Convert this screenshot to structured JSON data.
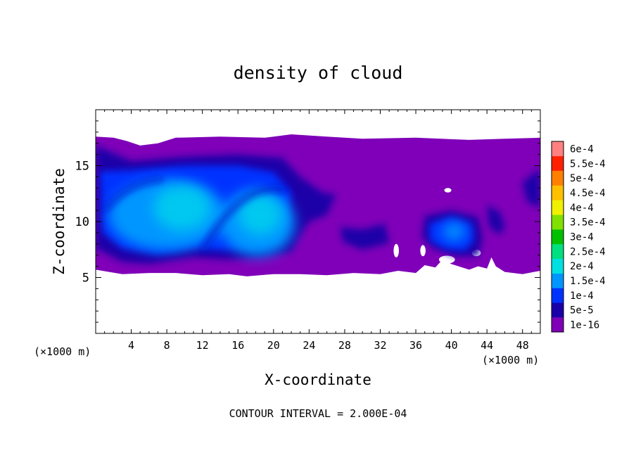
{
  "chart_data": {
    "type": "heatmap",
    "title": "density of cloud",
    "xlabel": "X-coordinate",
    "ylabel": "Z-coordinate",
    "x_unit_left": "(×1000 m)",
    "x_unit_right": "(×1000 m)",
    "footer": "CONTOUR INTERVAL = 2.000E-04",
    "xlim": [
      0,
      50
    ],
    "ylim": [
      0,
      20
    ],
    "x_ticks": [
      4,
      8,
      12,
      16,
      20,
      24,
      28,
      32,
      36,
      40,
      44,
      48
    ],
    "x_tick_labels": [
      "4",
      "8",
      "12",
      "16",
      "20",
      "24",
      "28",
      "32",
      "36",
      "40",
      "44",
      "48"
    ],
    "y_ticks": [
      5,
      10,
      15
    ],
    "y_tick_labels": [
      "5",
      "10",
      "15"
    ],
    "colorbar": {
      "labels": [
        "1e-16",
        "5e-5",
        "1e-4",
        "1.5e-4",
        "2e-4",
        "2.5e-4",
        "3e-4",
        "3.5e-4",
        "4e-4",
        "4.5e-4",
        "5e-4",
        "5.5e-4",
        "6e-4"
      ],
      "colors": [
        "#7f00b8",
        "#1a00a8",
        "#0032ff",
        "#0096ff",
        "#00e0e0",
        "#00e080",
        "#00c000",
        "#80e000",
        "#f0f000",
        "#ffc000",
        "#ff8000",
        "#ff2000",
        "#ff8080"
      ]
    },
    "regions": [
      {
        "name": "cloud-layer",
        "level": 1,
        "x": [
          0,
          50
        ],
        "z": [
          5.3,
          17.5
        ]
      },
      {
        "name": "left-cell-core",
        "level": 3,
        "x": [
          2,
          15
        ],
        "z": [
          7.5,
          14.5
        ],
        "peak": 0.00017
      },
      {
        "name": "center-cell-core",
        "level": 3,
        "x": [
          14,
          22
        ],
        "z": [
          7,
          13
        ],
        "peak": 0.00017
      },
      {
        "name": "right-cell",
        "level": 2,
        "x": [
          37,
          43
        ],
        "z": [
          6.5,
          10
        ],
        "peak": 0.00012
      }
    ]
  }
}
